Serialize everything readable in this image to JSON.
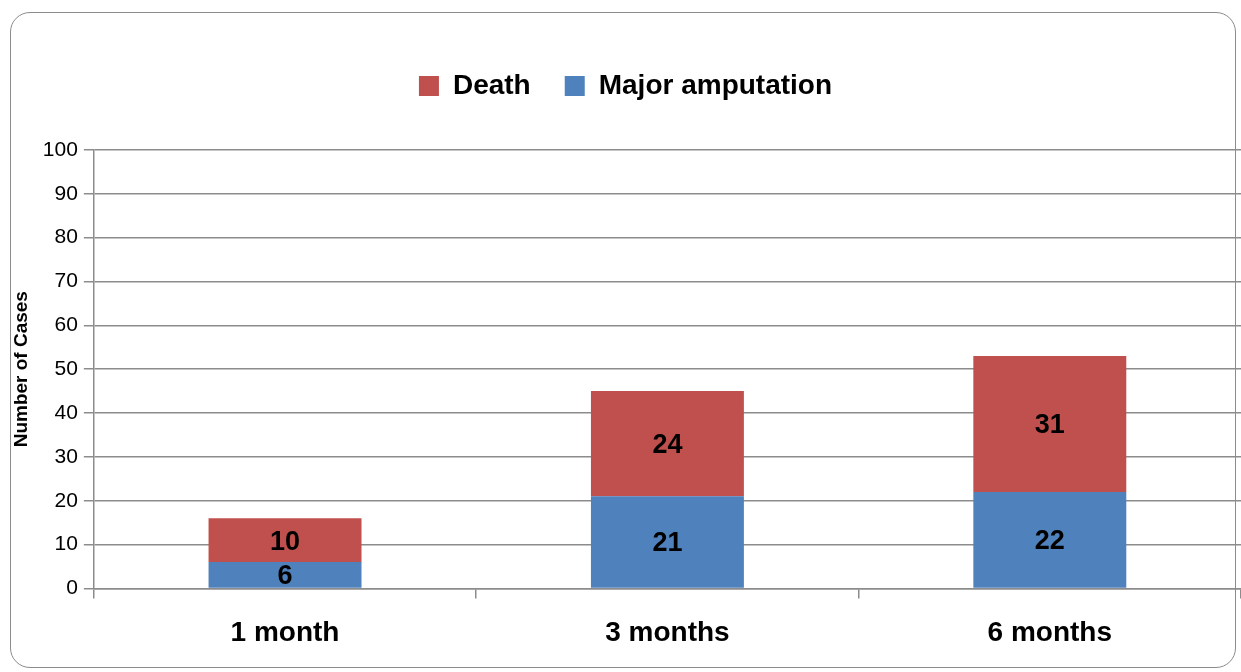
{
  "chart_data": {
    "type": "bar",
    "stacked": true,
    "categories": [
      "1 month",
      "3 months",
      "6 months"
    ],
    "series": [
      {
        "name": "Major amputation",
        "color": "#4f81bd",
        "values": [
          6,
          21,
          22
        ]
      },
      {
        "name": "Death",
        "color": "#c0504d",
        "values": [
          10,
          24,
          31
        ]
      }
    ],
    "ylabel": "Number of Cases",
    "ylim": [
      0,
      100
    ],
    "yticks": [
      0,
      10,
      20,
      30,
      40,
      50,
      60,
      70,
      80,
      90,
      100
    ],
    "grid": "y",
    "legend": "top",
    "data_labels": true
  }
}
